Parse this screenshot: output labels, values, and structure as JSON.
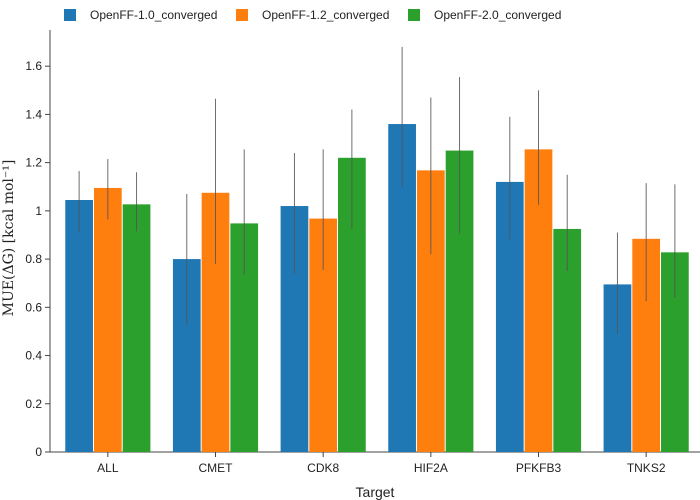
{
  "chart_data": {
    "type": "bar",
    "categories": [
      "ALL",
      "CMET",
      "CDK8",
      "HIF2A",
      "PFKFB3",
      "TNKS2"
    ],
    "series": [
      {
        "name": "OpenFF-1.0_converged",
        "color": "#1f77b4",
        "values": [
          1.045,
          0.8,
          1.02,
          1.36,
          1.12,
          0.695
        ],
        "error_low": [
          0.91,
          0.525,
          0.74,
          1.1,
          0.88,
          0.49
        ],
        "error_high": [
          1.165,
          1.07,
          1.24,
          1.68,
          1.39,
          0.91
        ]
      },
      {
        "name": "OpenFF-1.2_converged",
        "color": "#ff7f0e",
        "values": [
          1.095,
          1.075,
          0.968,
          1.168,
          1.255,
          0.884
        ],
        "error_low": [
          0.965,
          0.78,
          0.755,
          0.82,
          1.025,
          0.625
        ],
        "error_high": [
          1.215,
          1.465,
          1.255,
          1.47,
          1.5,
          1.115
        ]
      },
      {
        "name": "OpenFF-2.0_converged",
        "color": "#2ca02c",
        "values": [
          1.027,
          0.948,
          1.22,
          1.25,
          0.925,
          0.828
        ],
        "error_low": [
          0.915,
          0.735,
          0.925,
          0.905,
          0.75,
          0.64
        ],
        "error_high": [
          1.16,
          1.255,
          1.42,
          1.555,
          1.15,
          1.11
        ]
      }
    ],
    "xlabel": "Target",
    "ylabel": "MUE(ΔG) [kcal mol⁻¹]",
    "ylim": [
      0,
      1.75
    ],
    "yticks": [
      "0",
      "0.2",
      "0.4",
      "0.6",
      "0.8",
      "1",
      "1.2",
      "1.4",
      "1.6"
    ],
    "legend_position": "top",
    "grid": false
  }
}
